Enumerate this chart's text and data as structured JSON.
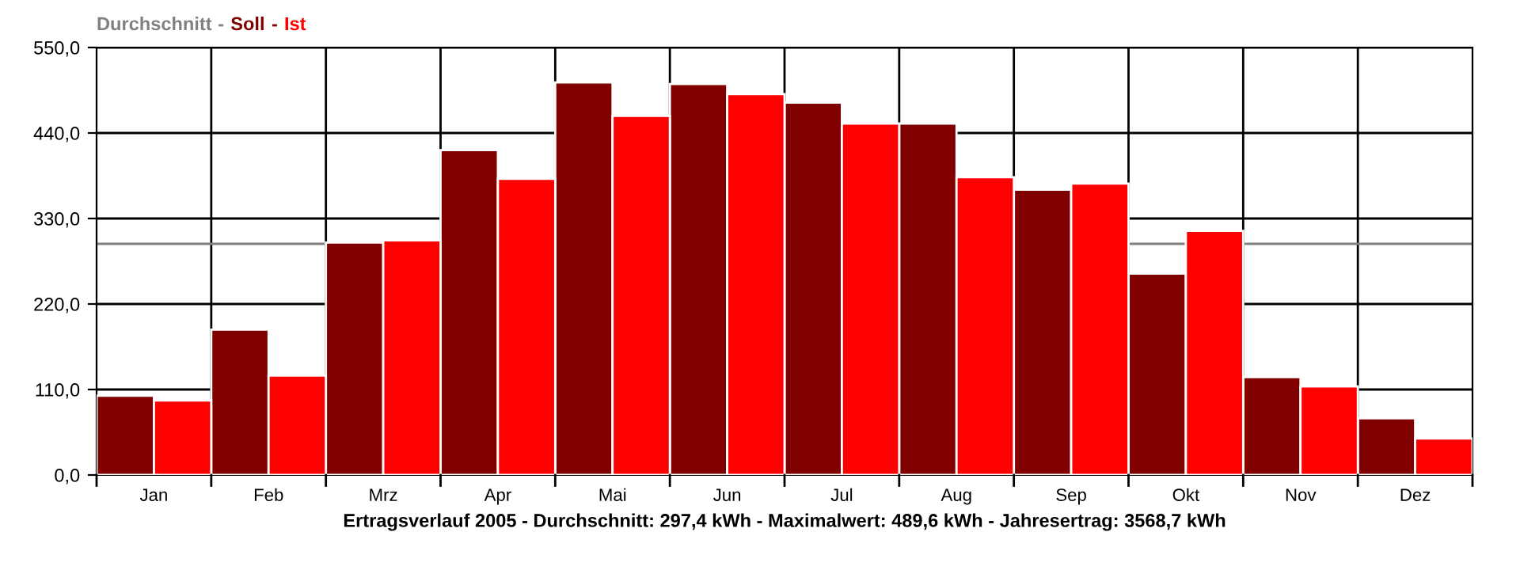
{
  "chart_data": {
    "type": "bar",
    "categories": [
      "Jan",
      "Feb",
      "Mrz",
      "Apr",
      "Mai",
      "Jun",
      "Jul",
      "Aug",
      "Sep",
      "Okt",
      "Nov",
      "Dez"
    ],
    "series": [
      {
        "name": "Soll",
        "color": "#800000",
        "values": [
          102,
          187,
          299,
          418,
          505,
          503,
          479,
          452,
          367,
          259,
          126,
          73
        ]
      },
      {
        "name": "Ist",
        "color": "#ff0000",
        "values": [
          96,
          128,
          302,
          381,
          462,
          490,
          452,
          383,
          375,
          314,
          114,
          47
        ]
      }
    ],
    "xlabel": "Ertragsverlauf 2005 - Durchschnitt: 297,4 kWh - Maximalwert: 489,6 kWh - Jahresertrag: 3568,7 kWh",
    "ylim": [
      0,
      550
    ],
    "yticks": [
      {
        "value": 0,
        "label": "0,0"
      },
      {
        "value": 110,
        "label": "110,0"
      },
      {
        "value": 220,
        "label": "220,0"
      },
      {
        "value": 330,
        "label": "330,0"
      },
      {
        "value": 440,
        "label": "440,0"
      },
      {
        "value": 550,
        "label": "550,0"
      }
    ],
    "ref_lines": [
      {
        "axis": "y",
        "value": 297.4,
        "label": "Durchschnitt",
        "color": "#808080"
      }
    ],
    "annotations": [
      "-",
      "-"
    ],
    "grid": true,
    "legend": "top left"
  }
}
